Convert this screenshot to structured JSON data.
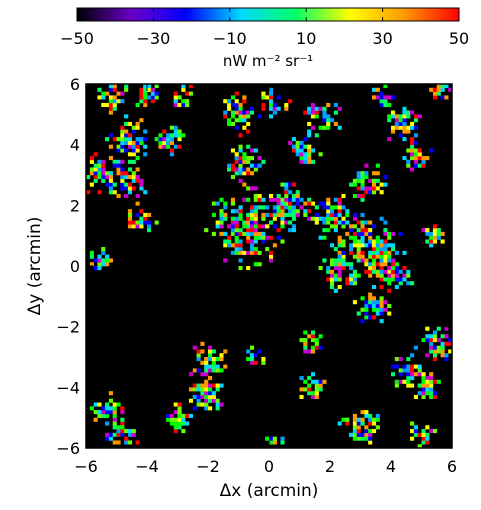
{
  "chart_data": {
    "type": "heatmap",
    "title": "",
    "xlabel": "Δx (arcmin)",
    "ylabel": "Δy (arcmin)",
    "xlim": [
      -6,
      6
    ],
    "ylim": [
      -6,
      6
    ],
    "xticks": [
      -6,
      -4,
      -2,
      0,
      2,
      4,
      6
    ],
    "yticks": [
      -6,
      -4,
      -2,
      0,
      2,
      4,
      6
    ],
    "background_color": "#000000",
    "mask_value_color": "#000000",
    "colorbar": {
      "label": "nW m⁻² sr⁻¹",
      "range": [
        -50,
        50
      ],
      "ticks": [
        -50,
        -30,
        -10,
        10,
        30,
        50
      ],
      "colormap": [
        "#000000",
        "#6a00c8",
        "#0000ff",
        "#00d8ff",
        "#00ff66",
        "#ffff00",
        "#ff9900",
        "#ff0000"
      ]
    },
    "grid_resolution_arcmin": 0.125,
    "clusters_description": "patchy speckled structure",
    "clusters": [
      {
        "x": -5.2,
        "y": 5.6,
        "r": 0.45
      },
      {
        "x": -4.0,
        "y": 5.7,
        "r": 0.4
      },
      {
        "x": -2.8,
        "y": 5.6,
        "r": 0.35
      },
      {
        "x": -4.6,
        "y": 4.2,
        "r": 0.6
      },
      {
        "x": -3.2,
        "y": 4.2,
        "r": 0.4
      },
      {
        "x": -5.6,
        "y": 3.0,
        "r": 0.5
      },
      {
        "x": -4.6,
        "y": 2.8,
        "r": 0.5
      },
      {
        "x": -4.2,
        "y": 1.6,
        "r": 0.4
      },
      {
        "x": -5.6,
        "y": 0.2,
        "r": 0.3
      },
      {
        "x": -1.0,
        "y": 5.0,
        "r": 0.5
      },
      {
        "x": 0.2,
        "y": 5.4,
        "r": 0.35
      },
      {
        "x": 1.8,
        "y": 5.0,
        "r": 0.5
      },
      {
        "x": 1.2,
        "y": 3.9,
        "r": 0.4
      },
      {
        "x": -0.8,
        "y": 3.4,
        "r": 0.45
      },
      {
        "x": 3.8,
        "y": 5.6,
        "r": 0.35
      },
      {
        "x": 4.4,
        "y": 4.7,
        "r": 0.5
      },
      {
        "x": 5.6,
        "y": 5.8,
        "r": 0.3
      },
      {
        "x": 4.8,
        "y": 3.6,
        "r": 0.4
      },
      {
        "x": 3.2,
        "y": 2.8,
        "r": 0.45
      },
      {
        "x": -0.7,
        "y": 1.3,
        "r": 1.0
      },
      {
        "x": 0.7,
        "y": 1.9,
        "r": 0.6
      },
      {
        "x": 2.0,
        "y": 1.7,
        "r": 0.6
      },
      {
        "x": 3.2,
        "y": 0.6,
        "r": 0.9
      },
      {
        "x": 4.1,
        "y": -0.2,
        "r": 0.5
      },
      {
        "x": 2.3,
        "y": -0.2,
        "r": 0.45
      },
      {
        "x": 3.4,
        "y": -1.3,
        "r": 0.45
      },
      {
        "x": 5.4,
        "y": 1.0,
        "r": 0.3
      },
      {
        "x": 1.4,
        "y": -2.5,
        "r": 0.3
      },
      {
        "x": 5.5,
        "y": -2.6,
        "r": 0.5
      },
      {
        "x": 4.6,
        "y": -3.5,
        "r": 0.45
      },
      {
        "x": 5.2,
        "y": -4.0,
        "r": 0.4
      },
      {
        "x": -2.0,
        "y": -3.2,
        "r": 0.5
      },
      {
        "x": -2.0,
        "y": -4.3,
        "r": 0.45
      },
      {
        "x": -5.2,
        "y": -4.8,
        "r": 0.45
      },
      {
        "x": -4.8,
        "y": -5.6,
        "r": 0.4
      },
      {
        "x": -3.0,
        "y": -5.0,
        "r": 0.35
      },
      {
        "x": 1.4,
        "y": -4.0,
        "r": 0.35
      },
      {
        "x": 3.0,
        "y": -5.3,
        "r": 0.5
      },
      {
        "x": 5.0,
        "y": -5.6,
        "r": 0.4
      },
      {
        "x": 0.2,
        "y": -5.9,
        "r": 0.35
      },
      {
        "x": -0.4,
        "y": -3.0,
        "r": 0.3
      }
    ]
  }
}
